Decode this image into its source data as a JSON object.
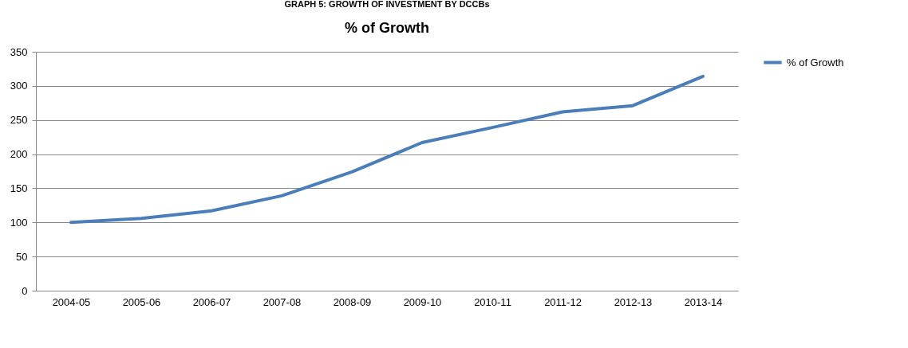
{
  "chart_data": {
    "type": "line",
    "title": "% of Growth",
    "annotations": [
      "GRAPH 5: GROWTH OF INVESTMENT BY DCCBs"
    ],
    "categories": [
      "2004-05",
      "2005-06",
      "2006-07",
      "2007-08",
      "2008-09",
      "2009-10",
      "2010-11",
      "2011-12",
      "2012-13",
      "2013-14"
    ],
    "series": [
      {
        "name": "% of Growth",
        "color": "#4a7ebb",
        "values": [
          100,
          106,
          117,
          139,
          174,
          217,
          239,
          262,
          271,
          314
        ]
      }
    ],
    "ylim": [
      0,
      350
    ],
    "yticks": [
      0,
      50,
      100,
      150,
      200,
      250,
      300,
      350
    ],
    "grid": "y",
    "legend": "right",
    "marker": "none",
    "line_style": "solid"
  }
}
